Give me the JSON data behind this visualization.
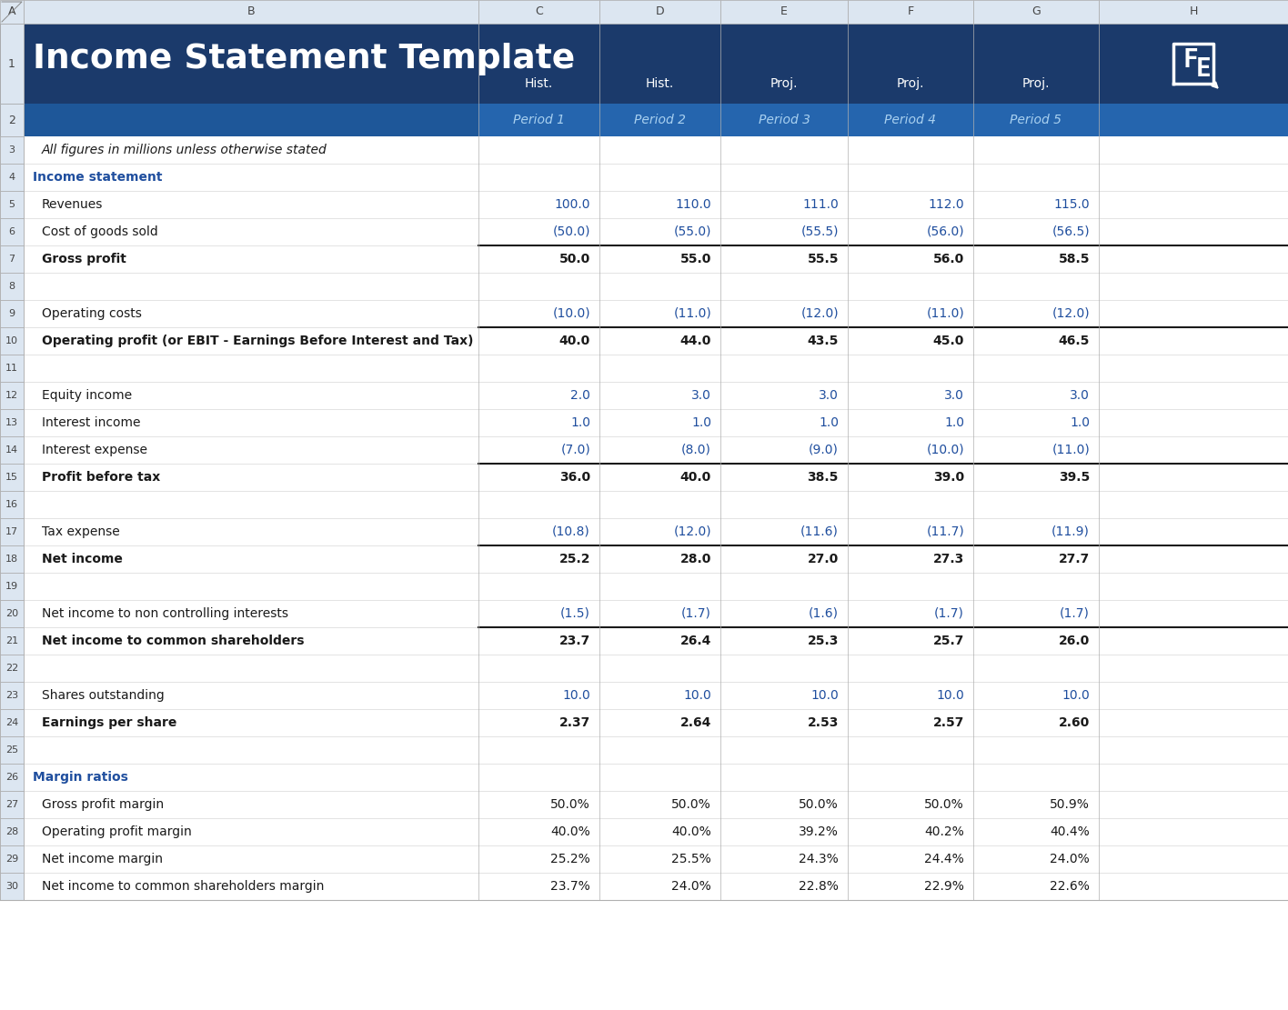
{
  "title": "Income Statement Template",
  "logo_text": "FE",
  "header_bg_dark": "#1b3a6b",
  "header_bg_medium": "#1e5799",
  "col_header_bg": "#1e5799",
  "excel_header_bg": "#dce6f1",
  "row_bg_white": "#ffffff",
  "grid_color": "#c8c8c8",
  "bold_line_color": "#1a1a1a",
  "blue_text": "#1f4e9e",
  "black_text": "#1a1a1a",
  "col_labels_row1": [
    "Hist.",
    "Hist.",
    "Proj.",
    "Proj.",
    "Proj."
  ],
  "col_labels_row2": [
    "Period 1",
    "Period 2",
    "Period 3",
    "Period 4",
    "Period 5"
  ],
  "excel_col_headers": [
    "A",
    "B",
    "C",
    "D",
    "E",
    "F",
    "G",
    "H"
  ],
  "rows": [
    {
      "row": 3,
      "label": "All figures in millions unless otherwise stated",
      "italic": true,
      "bold": false,
      "values": [
        "",
        "",
        "",
        "",
        ""
      ],
      "blue_values": false,
      "section_header": false,
      "bottom_border": false
    },
    {
      "row": 4,
      "label": "Income statement",
      "italic": false,
      "bold": true,
      "values": [
        "",
        "",
        "",
        "",
        ""
      ],
      "blue_values": false,
      "section_header": true,
      "bottom_border": false
    },
    {
      "row": 5,
      "label": "Revenues",
      "italic": false,
      "bold": false,
      "values": [
        "100.0",
        "110.0",
        "111.0",
        "112.0",
        "115.0"
      ],
      "blue_values": true,
      "section_header": false,
      "bottom_border": false
    },
    {
      "row": 6,
      "label": "Cost of goods sold",
      "italic": false,
      "bold": false,
      "values": [
        "(50.0)",
        "(55.0)",
        "(55.5)",
        "(56.0)",
        "(56.5)"
      ],
      "blue_values": true,
      "section_header": false,
      "bottom_border": true
    },
    {
      "row": 7,
      "label": "Gross profit",
      "italic": false,
      "bold": true,
      "values": [
        "50.0",
        "55.0",
        "55.5",
        "56.0",
        "58.5"
      ],
      "blue_values": false,
      "section_header": false,
      "bottom_border": false
    },
    {
      "row": 8,
      "label": "",
      "italic": false,
      "bold": false,
      "values": [
        "",
        "",
        "",
        "",
        ""
      ],
      "blue_values": false,
      "section_header": false,
      "bottom_border": false
    },
    {
      "row": 9,
      "label": "Operating costs",
      "italic": false,
      "bold": false,
      "values": [
        "(10.0)",
        "(11.0)",
        "(12.0)",
        "(11.0)",
        "(12.0)"
      ],
      "blue_values": true,
      "section_header": false,
      "bottom_border": true
    },
    {
      "row": 10,
      "label": "Operating profit (or EBIT - Earnings Before Interest and Tax)",
      "italic": false,
      "bold": true,
      "values": [
        "40.0",
        "44.0",
        "43.5",
        "45.0",
        "46.5"
      ],
      "blue_values": false,
      "section_header": false,
      "bottom_border": false
    },
    {
      "row": 11,
      "label": "",
      "italic": false,
      "bold": false,
      "values": [
        "",
        "",
        "",
        "",
        ""
      ],
      "blue_values": false,
      "section_header": false,
      "bottom_border": false
    },
    {
      "row": 12,
      "label": "Equity income",
      "italic": false,
      "bold": false,
      "values": [
        "2.0",
        "3.0",
        "3.0",
        "3.0",
        "3.0"
      ],
      "blue_values": true,
      "section_header": false,
      "bottom_border": false
    },
    {
      "row": 13,
      "label": "Interest income",
      "italic": false,
      "bold": false,
      "values": [
        "1.0",
        "1.0",
        "1.0",
        "1.0",
        "1.0"
      ],
      "blue_values": true,
      "section_header": false,
      "bottom_border": false
    },
    {
      "row": 14,
      "label": "Interest expense",
      "italic": false,
      "bold": false,
      "values": [
        "(7.0)",
        "(8.0)",
        "(9.0)",
        "(10.0)",
        "(11.0)"
      ],
      "blue_values": true,
      "section_header": false,
      "bottom_border": true
    },
    {
      "row": 15,
      "label": "Profit before tax",
      "italic": false,
      "bold": true,
      "values": [
        "36.0",
        "40.0",
        "38.5",
        "39.0",
        "39.5"
      ],
      "blue_values": false,
      "section_header": false,
      "bottom_border": false
    },
    {
      "row": 16,
      "label": "",
      "italic": false,
      "bold": false,
      "values": [
        "",
        "",
        "",
        "",
        ""
      ],
      "blue_values": false,
      "section_header": false,
      "bottom_border": false
    },
    {
      "row": 17,
      "label": "Tax expense",
      "italic": false,
      "bold": false,
      "values": [
        "(10.8)",
        "(12.0)",
        "(11.6)",
        "(11.7)",
        "(11.9)"
      ],
      "blue_values": true,
      "section_header": false,
      "bottom_border": true
    },
    {
      "row": 18,
      "label": "Net income",
      "italic": false,
      "bold": true,
      "values": [
        "25.2",
        "28.0",
        "27.0",
        "27.3",
        "27.7"
      ],
      "blue_values": false,
      "section_header": false,
      "bottom_border": false
    },
    {
      "row": 19,
      "label": "",
      "italic": false,
      "bold": false,
      "values": [
        "",
        "",
        "",
        "",
        ""
      ],
      "blue_values": false,
      "section_header": false,
      "bottom_border": false
    },
    {
      "row": 20,
      "label": "Net income to non controlling interests",
      "italic": false,
      "bold": false,
      "values": [
        "(1.5)",
        "(1.7)",
        "(1.6)",
        "(1.7)",
        "(1.7)"
      ],
      "blue_values": true,
      "section_header": false,
      "bottom_border": true
    },
    {
      "row": 21,
      "label": "Net income to common shareholders",
      "italic": false,
      "bold": true,
      "values": [
        "23.7",
        "26.4",
        "25.3",
        "25.7",
        "26.0"
      ],
      "blue_values": false,
      "section_header": false,
      "bottom_border": false
    },
    {
      "row": 22,
      "label": "",
      "italic": false,
      "bold": false,
      "values": [
        "",
        "",
        "",
        "",
        ""
      ],
      "blue_values": false,
      "section_header": false,
      "bottom_border": false
    },
    {
      "row": 23,
      "label": "Shares outstanding",
      "italic": false,
      "bold": false,
      "values": [
        "10.0",
        "10.0",
        "10.0",
        "10.0",
        "10.0"
      ],
      "blue_values": true,
      "section_header": false,
      "bottom_border": false
    },
    {
      "row": 24,
      "label": "Earnings per share",
      "italic": false,
      "bold": true,
      "values": [
        "2.37",
        "2.64",
        "2.53",
        "2.57",
        "2.60"
      ],
      "blue_values": false,
      "section_header": false,
      "bottom_border": false
    },
    {
      "row": 25,
      "label": "",
      "italic": false,
      "bold": false,
      "values": [
        "",
        "",
        "",
        "",
        ""
      ],
      "blue_values": false,
      "section_header": false,
      "bottom_border": false
    },
    {
      "row": 26,
      "label": "Margin ratios",
      "italic": false,
      "bold": true,
      "values": [
        "",
        "",
        "",
        "",
        ""
      ],
      "blue_values": false,
      "section_header": true,
      "bottom_border": false
    },
    {
      "row": 27,
      "label": "Gross profit margin",
      "italic": false,
      "bold": false,
      "values": [
        "50.0%",
        "50.0%",
        "50.0%",
        "50.0%",
        "50.9%"
      ],
      "blue_values": false,
      "section_header": false,
      "bottom_border": false
    },
    {
      "row": 28,
      "label": "Operating profit margin",
      "italic": false,
      "bold": false,
      "values": [
        "40.0%",
        "40.0%",
        "39.2%",
        "40.2%",
        "40.4%"
      ],
      "blue_values": false,
      "section_header": false,
      "bottom_border": false
    },
    {
      "row": 29,
      "label": "Net income margin",
      "italic": false,
      "bold": false,
      "values": [
        "25.2%",
        "25.5%",
        "24.3%",
        "24.4%",
        "24.0%"
      ],
      "blue_values": false,
      "section_header": false,
      "bottom_border": false
    },
    {
      "row": 30,
      "label": "Net income to common shareholders margin",
      "italic": false,
      "bold": false,
      "values": [
        "23.7%",
        "24.0%",
        "22.8%",
        "22.9%",
        "22.6%"
      ],
      "blue_values": false,
      "section_header": false,
      "bottom_border": false
    }
  ]
}
